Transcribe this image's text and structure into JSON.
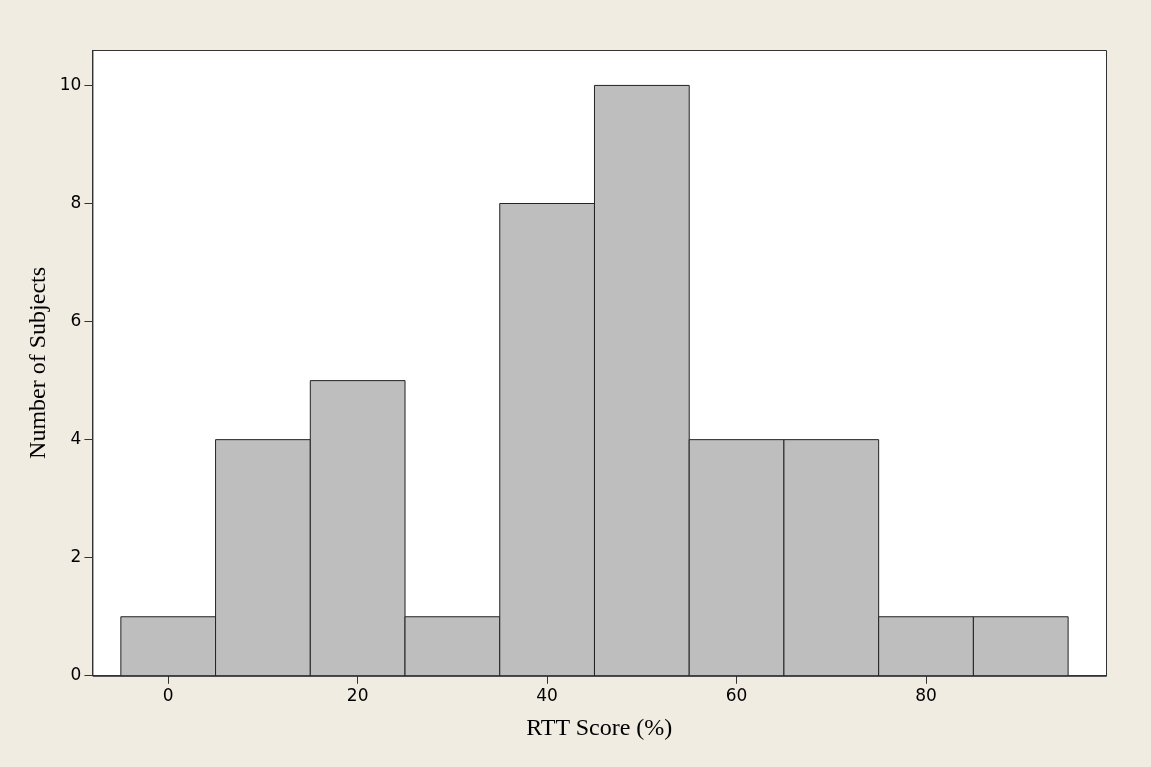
{
  "chart_data": {
    "type": "histogram",
    "xlabel": "RTT Score (%)",
    "ylabel": "Number of Subjects",
    "bins": [
      -5,
      5,
      15,
      25,
      35,
      45,
      55,
      65,
      75,
      85,
      95
    ],
    "values": [
      1,
      4,
      5,
      1,
      8,
      10,
      4,
      4,
      1,
      1
    ],
    "color": "#bebebe",
    "xlim": [
      -8,
      99
    ],
    "xticks": [
      0,
      20,
      40,
      60,
      80
    ],
    "ylim": [
      0,
      10.6
    ],
    "yticks": [
      0,
      2,
      4,
      6,
      8,
      10
    ],
    "grid": false,
    "legend": false
  }
}
